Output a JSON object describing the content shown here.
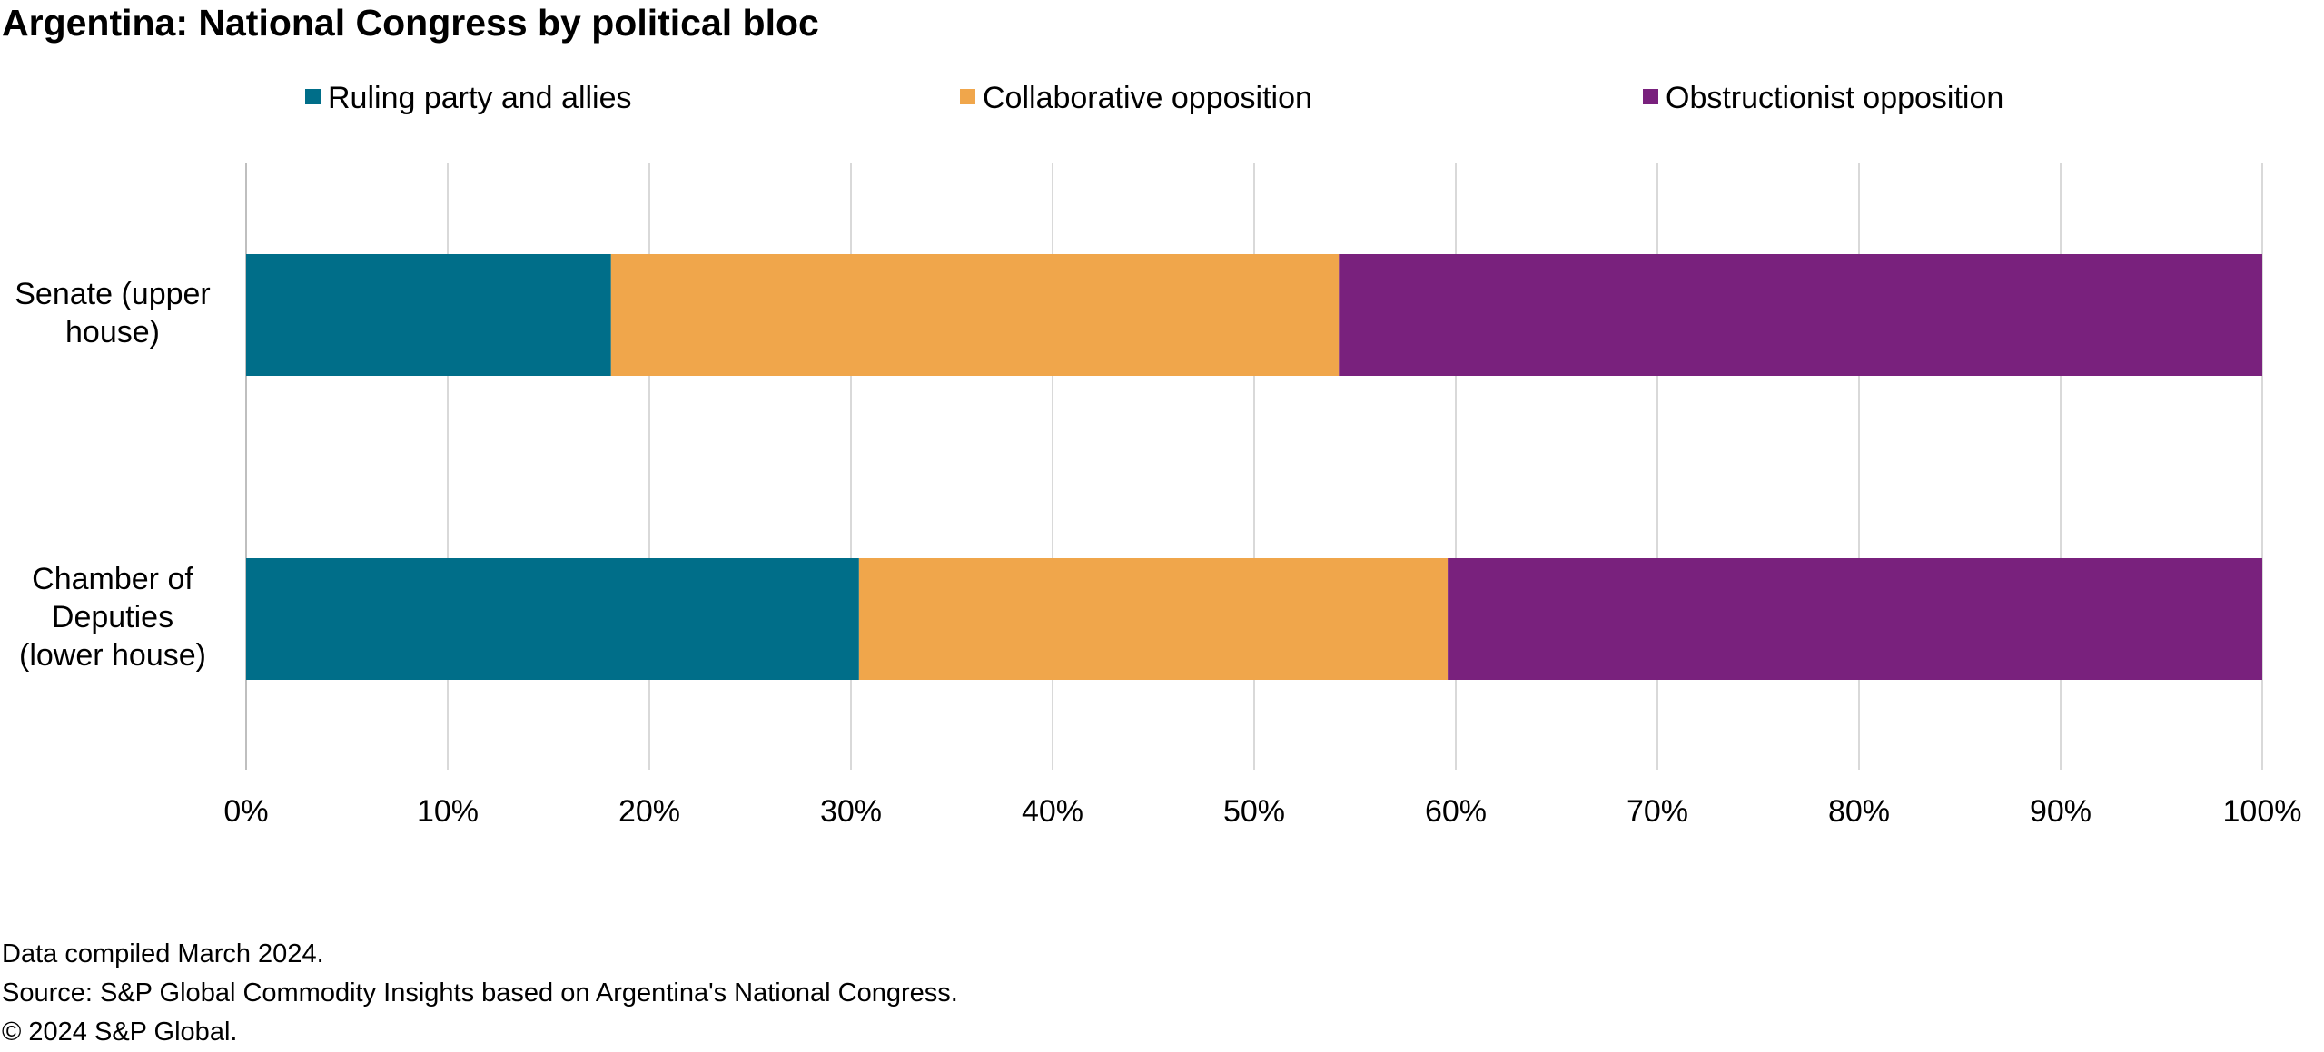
{
  "chart_data": {
    "type": "bar",
    "orientation": "horizontal",
    "stacked": true,
    "title": "Argentina: National Congress by political bloc",
    "xlabel": "",
    "ylabel": "",
    "xlim": [
      0,
      100
    ],
    "grid": true,
    "legend_position": "top",
    "categories": [
      [
        "Senate (upper",
        "house)"
      ],
      [
        "Chamber of",
        "Deputies",
        "(lower house)"
      ]
    ],
    "x_ticks": [
      "0%",
      "10%",
      "20%",
      "30%",
      "40%",
      "50%",
      "60%",
      "70%",
      "80%",
      "90%",
      "100%"
    ],
    "series": [
      {
        "name": "Ruling party and allies",
        "color": "#006E89",
        "values": [
          18.1,
          30.4
        ]
      },
      {
        "name": "Collaborative opposition",
        "color": "#F0A64B",
        "values": [
          36.1,
          29.2
        ]
      },
      {
        "name": "Obstructionist opposition",
        "color": "#79217D",
        "values": [
          45.8,
          40.4
        ]
      }
    ]
  },
  "footnotes": {
    "line1": "Data compiled March 2024.",
    "line2": "Source: S&P Global Commodity Insights based on Argentina's National Congress.",
    "line3": "© 2024 S&P Global."
  }
}
